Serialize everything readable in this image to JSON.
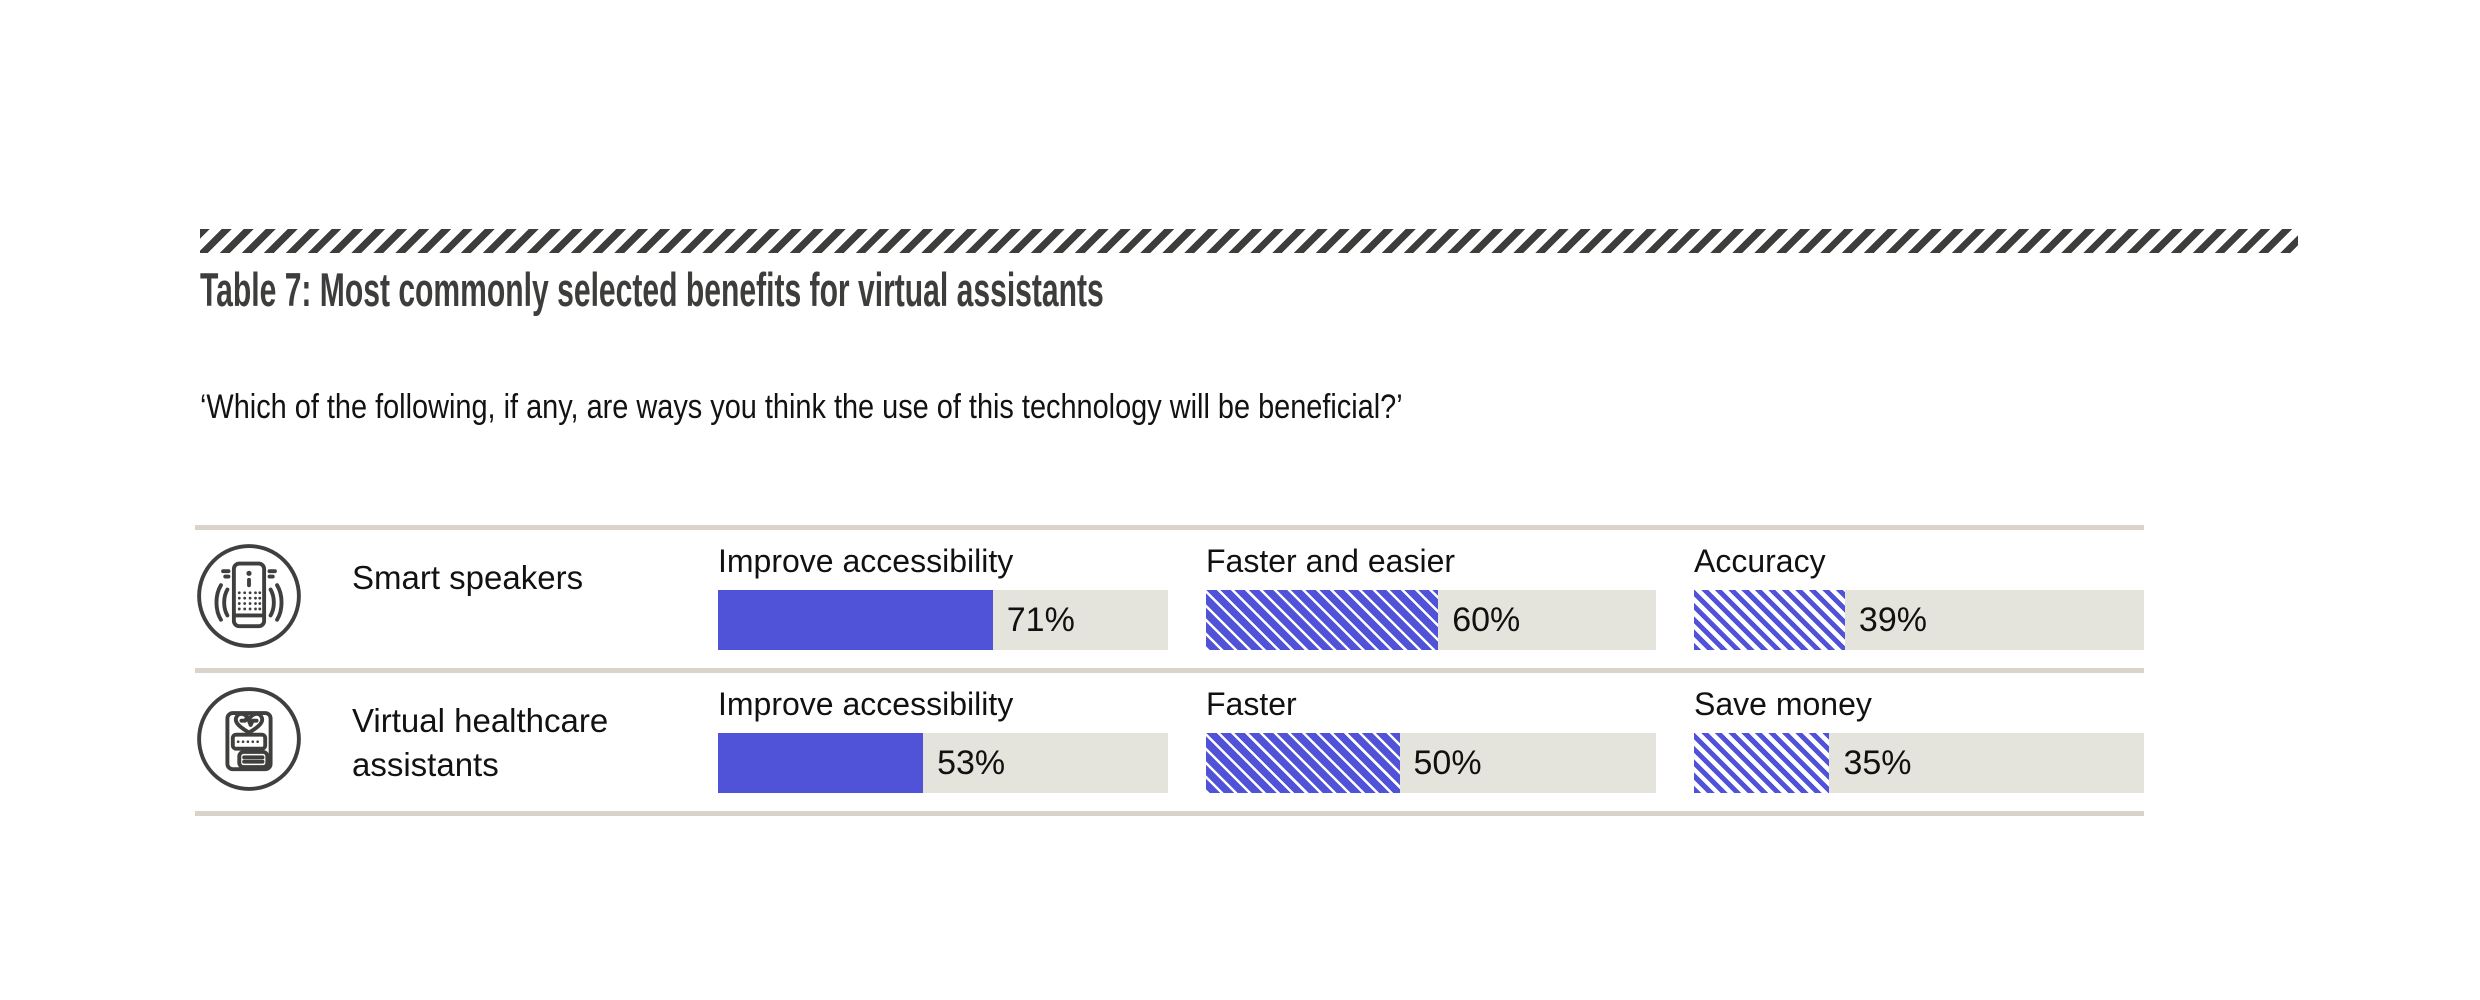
{
  "colors": {
    "accent": "#5053d8",
    "track": "#e5e4dc",
    "divider": "#d9d3c9",
    "rule": "#3d3d3c",
    "title_text": "#3d3d3c"
  },
  "header": {
    "title": "Table 7: Most commonly selected benefits for virtual assistants",
    "subtitle": "‘Which of the following, if any, are ways you think the use of this technology will be beneficial?’"
  },
  "rows": [
    {
      "name": "Smart speakers",
      "icon": "smart-speaker-icon",
      "bars": [
        {
          "label": "Improve accessibility",
          "value": 71,
          "display": "71%",
          "style": "solid"
        },
        {
          "label": "Faster and easier",
          "value": 60,
          "display": "60%",
          "style": "hatch-dense"
        },
        {
          "label": "Accuracy",
          "value": 39,
          "display": "39%",
          "style": "hatch-light"
        }
      ]
    },
    {
      "name": "Virtual healthcare assistants",
      "icon": "virtual-healthcare-assistant-icon",
      "bars": [
        {
          "label": "Improve accessibility",
          "value": 53,
          "display": "53%",
          "style": "solid"
        },
        {
          "label": "Faster",
          "value": 50,
          "display": "50%",
          "style": "hatch-dense"
        },
        {
          "label": "Save money",
          "value": 35,
          "display": "35%",
          "style": "hatch-light"
        }
      ]
    }
  ],
  "chart_data": {
    "type": "bar",
    "title": "Table 7: Most commonly selected benefits for virtual assistants",
    "subtitle": "‘Which of the following, if any, are ways you think the use of this technology will be beneficial?’",
    "unit": "%",
    "value_range": [
      0,
      100
    ],
    "legend": "none",
    "grid": false,
    "groups": [
      {
        "category": "Smart speakers",
        "benefits": [
          {
            "label": "Improve accessibility",
            "value": 71,
            "fill": "solid-blue"
          },
          {
            "label": "Faster and easier",
            "value": 60,
            "fill": "dense-diagonal-hatch"
          },
          {
            "label": "Accuracy",
            "value": 39,
            "fill": "light-diagonal-hatch"
          }
        ]
      },
      {
        "category": "Virtual healthcare assistants",
        "benefits": [
          {
            "label": "Improve accessibility",
            "value": 53,
            "fill": "solid-blue"
          },
          {
            "label": "Faster",
            "value": 50,
            "fill": "dense-diagonal-hatch"
          },
          {
            "label": "Save money",
            "value": 35,
            "fill": "light-diagonal-hatch"
          }
        ]
      }
    ]
  }
}
